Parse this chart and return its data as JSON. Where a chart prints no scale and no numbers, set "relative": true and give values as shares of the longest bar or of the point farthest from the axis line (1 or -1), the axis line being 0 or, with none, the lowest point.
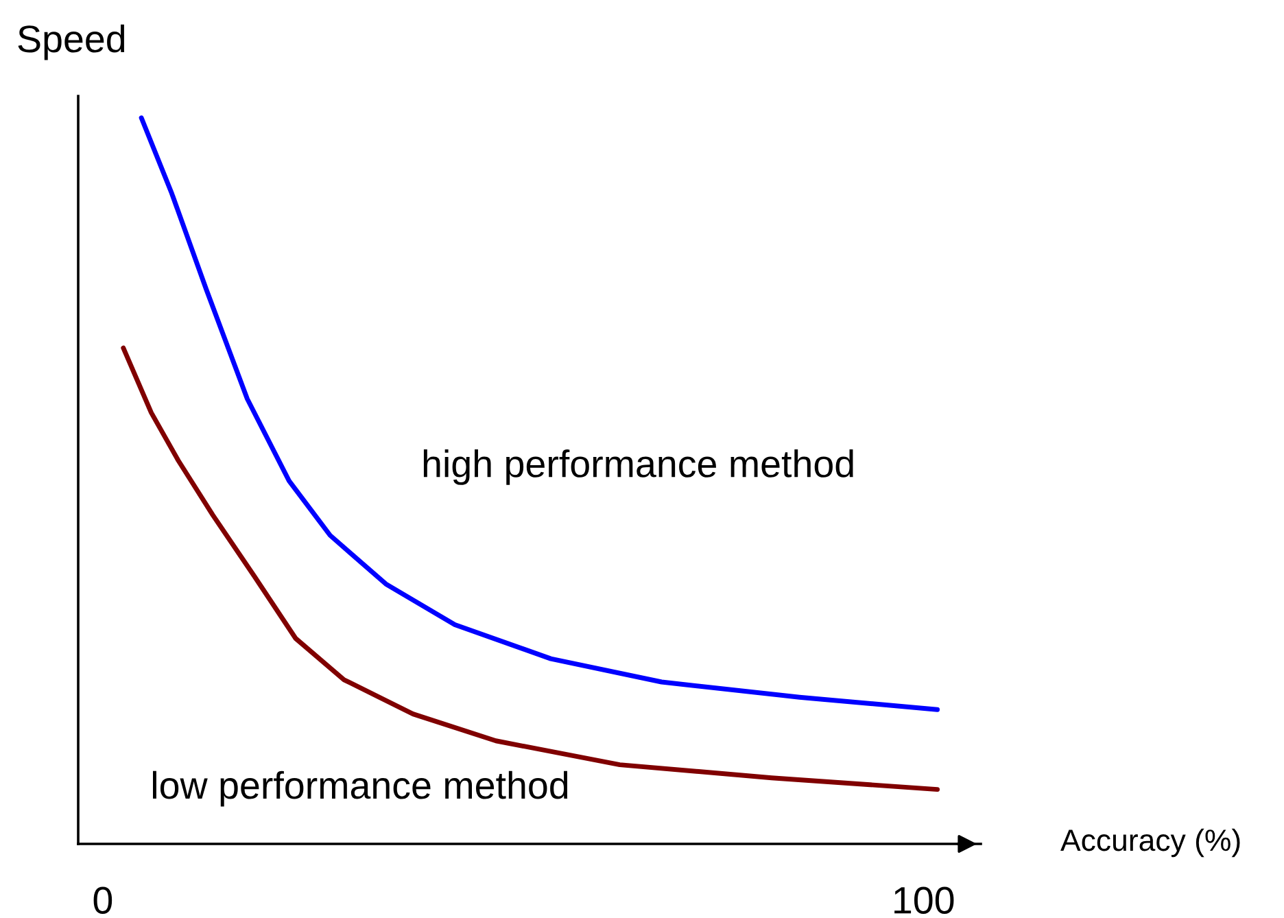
{
  "chart_data": {
    "type": "line",
    "relative": true,
    "xlabel": "Accuracy (%)",
    "ylabel": "Speed",
    "xlim": [
      -3,
      107
    ],
    "xticks": [
      0,
      100
    ],
    "grid": false,
    "legend": false,
    "marker": "none",
    "line_style": "solid",
    "series": [
      {
        "name": "high performance method",
        "color": "#0000ff",
        "x": [
          4.7,
          8.4,
          12.6,
          17.6,
          22.7,
          27.7,
          34.5,
          42.9,
          54.6,
          68.1,
          84.9,
          101.7
        ],
        "values": [
          1.0,
          0.896,
          0.764,
          0.613,
          0.5,
          0.425,
          0.358,
          0.302,
          0.255,
          0.223,
          0.202,
          0.185
        ]
      },
      {
        "name": "low performance method",
        "color": "#800000",
        "x": [
          2.5,
          5.9,
          9.2,
          13.4,
          18.5,
          23.5,
          29.4,
          37.8,
          47.9,
          63.0,
          81.5,
          101.7
        ],
        "values": [
          0.683,
          0.594,
          0.528,
          0.453,
          0.368,
          0.283,
          0.226,
          0.179,
          0.142,
          0.109,
          0.091,
          0.075
        ]
      }
    ]
  }
}
